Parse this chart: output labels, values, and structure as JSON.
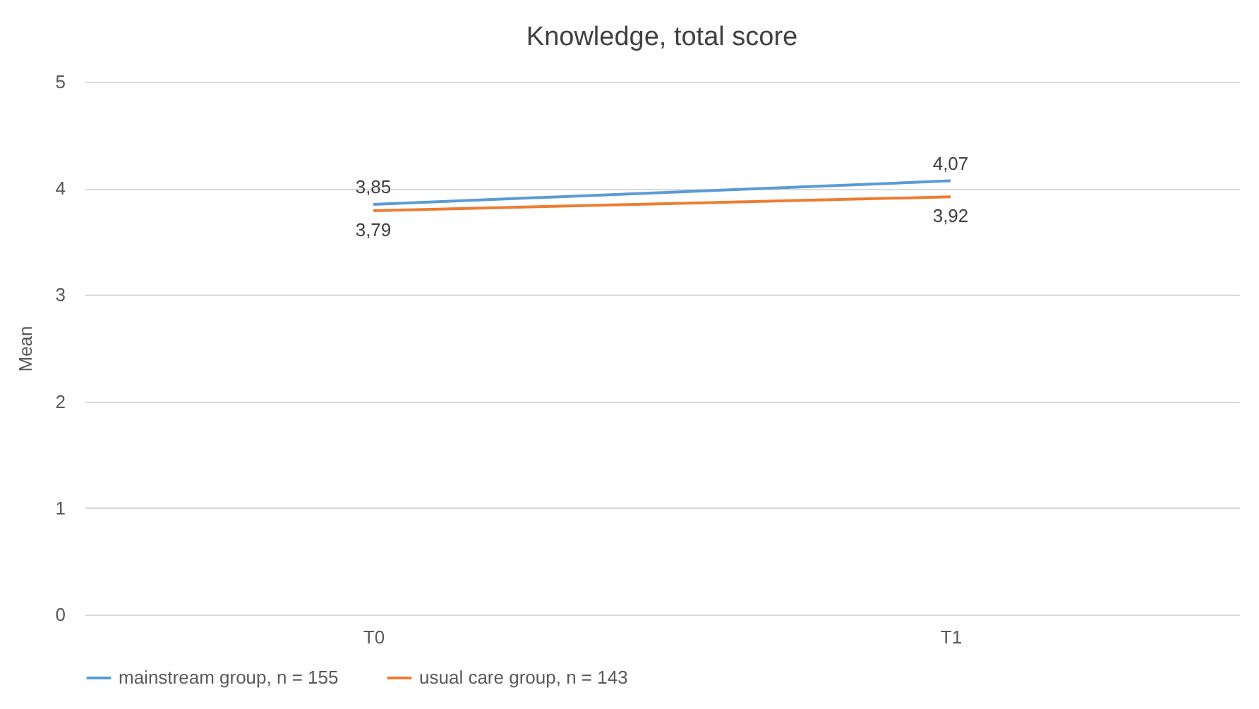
{
  "chart_data": {
    "type": "line",
    "title": "Knowledge, total score",
    "ylabel": "Mean",
    "categories": [
      "T0",
      "T1"
    ],
    "series": [
      {
        "name": "mainstream group, n = 155",
        "color": "#5b9bd5",
        "values": [
          3.85,
          4.07
        ],
        "value_labels": [
          "3,85",
          "4,07"
        ]
      },
      {
        "name": "usual care group, n = 143",
        "color": "#ed7d31",
        "values": [
          3.79,
          3.92
        ],
        "value_labels": [
          "3,79",
          "3,92"
        ]
      }
    ],
    "ylim": [
      0,
      5
    ],
    "yticks": [
      0,
      1,
      2,
      3,
      4,
      5
    ],
    "grid": "y",
    "legend": "bottom",
    "marker": "none",
    "line_style": "solid"
  }
}
